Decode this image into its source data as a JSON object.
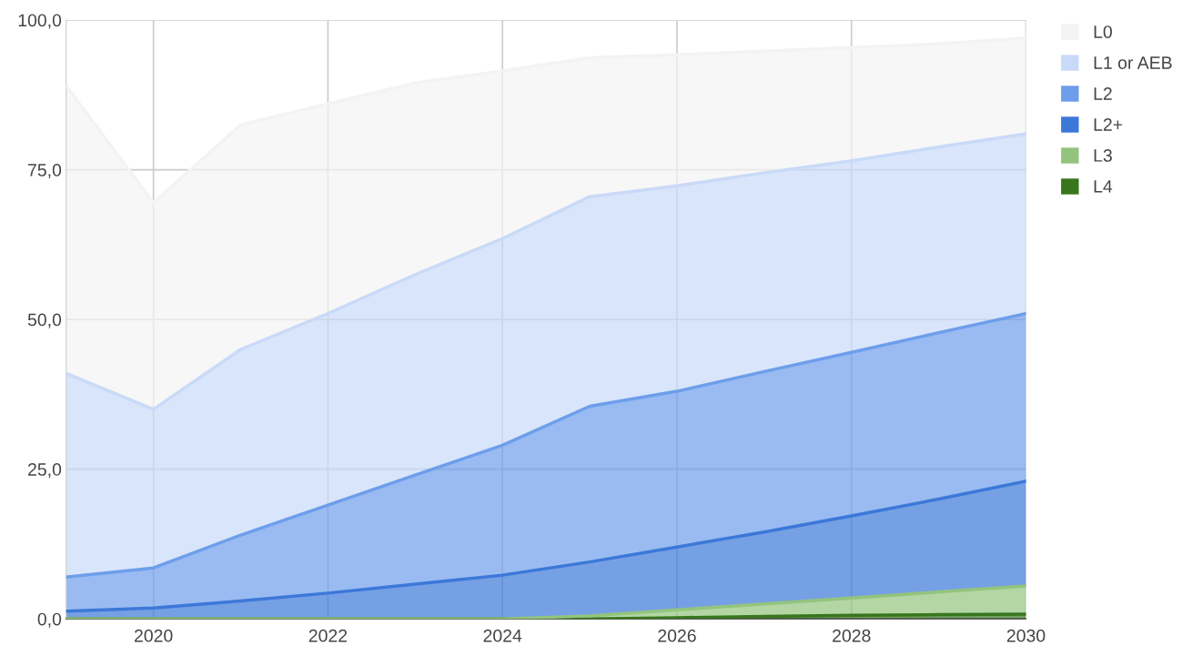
{
  "chart_data": {
    "type": "area",
    "stacked": true,
    "x": [
      2019,
      2020,
      2021,
      2022,
      2023,
      2024,
      2025,
      2026,
      2027,
      2028,
      2029,
      2030
    ],
    "xlim": [
      2019,
      2030
    ],
    "xticks": [
      2020,
      2022,
      2024,
      2026,
      2028,
      2030
    ],
    "ylim": [
      0,
      100
    ],
    "yticks": [
      {
        "value": 0,
        "label": "0,0"
      },
      {
        "value": 25,
        "label": "25,0"
      },
      {
        "value": 50,
        "label": "50,0"
      },
      {
        "value": 75,
        "label": "75,0"
      },
      {
        "value": 100,
        "label": "100,0"
      }
    ],
    "grid": true,
    "legend": "top right",
    "series": [
      {
        "name": "L4",
        "color": "#38761d",
        "values": [
          0,
          0,
          0,
          0,
          0,
          0,
          0,
          0.2,
          0.4,
          0.6,
          0.7,
          0.8
        ]
      },
      {
        "name": "L3",
        "color": "#93c47d",
        "values": [
          0,
          0,
          0,
          0,
          0,
          0,
          0.5,
          1.3,
          2.1,
          2.9,
          3.8,
          4.7
        ]
      },
      {
        "name": "L2+",
        "color": "#3c78d8",
        "values": [
          1.3,
          1.8,
          3,
          4.3,
          5.8,
          7.3,
          9,
          10.5,
          12,
          13.7,
          15.5,
          17.5
        ]
      },
      {
        "name": "L2",
        "color": "#6d9eeb",
        "values": [
          5.7,
          6.7,
          11,
          14.7,
          18.2,
          21.7,
          26,
          26,
          26.8,
          27.3,
          27.8,
          28
        ]
      },
      {
        "name": "L1 or AEB",
        "color": "#c9daf8",
        "values": [
          34,
          26.5,
          31,
          32,
          33.5,
          34.5,
          35,
          34.3,
          33.2,
          32,
          31,
          30
        ]
      },
      {
        "name": "L0",
        "color": "#f3f3f3",
        "values": [
          48,
          34.5,
          37.5,
          35,
          32,
          28,
          23.2,
          21.9,
          20.3,
          18.9,
          17.2,
          16
        ]
      }
    ]
  }
}
